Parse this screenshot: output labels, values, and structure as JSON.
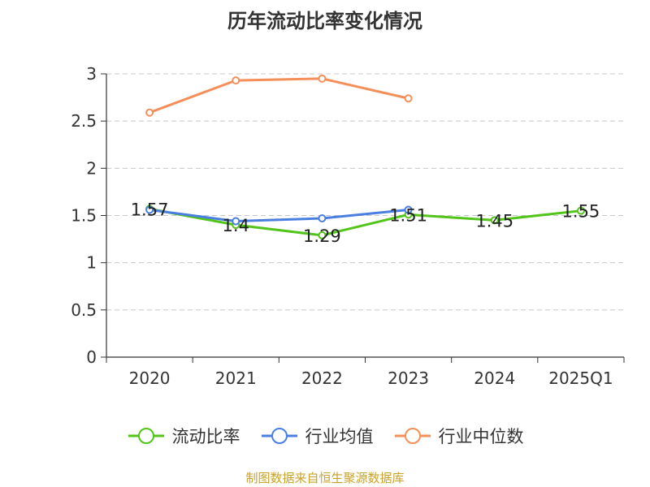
{
  "chart_data": {
    "type": "line",
    "title": "历年流动比率变化情况",
    "categories": [
      "2020",
      "2021",
      "2022",
      "2023",
      "2024",
      "2025Q1"
    ],
    "ylim": [
      0,
      3
    ],
    "yticks": [
      "0",
      "0.5",
      "1",
      "1.5",
      "2",
      "2.5",
      "3"
    ],
    "grid": true,
    "legend_position": "bottom",
    "series": [
      {
        "name": "流动比率",
        "color": "#52c41a",
        "values": [
          1.57,
          1.4,
          1.29,
          1.51,
          1.45,
          1.55
        ],
        "labels": [
          "1.57",
          "1.4",
          "1.29",
          "1.51",
          "1.45",
          "1.55"
        ]
      },
      {
        "name": "行业均值",
        "color": "#4a7fe0",
        "values": [
          1.56,
          1.44,
          1.47,
          1.56,
          null,
          null
        ]
      },
      {
        "name": "行业中位数",
        "color": "#f58f5a",
        "values": [
          2.59,
          2.93,
          2.95,
          2.74,
          null,
          null
        ]
      }
    ]
  },
  "footer": {
    "source": "制图数据来自恒生聚源数据库"
  }
}
